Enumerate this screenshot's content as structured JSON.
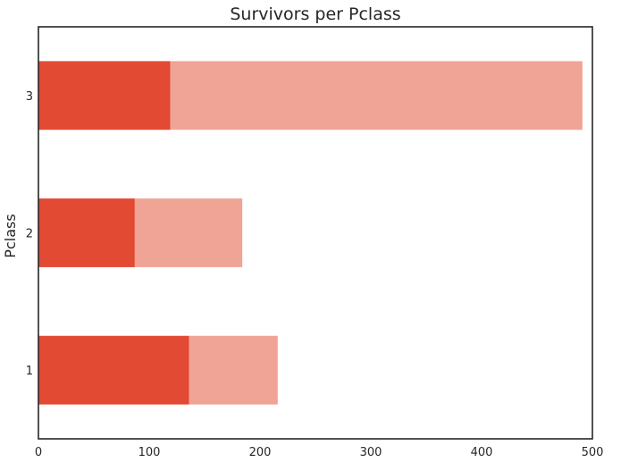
{
  "chart_data": {
    "type": "bar",
    "orientation": "horizontal",
    "stacked": true,
    "title": "Survivors per Pclass",
    "xlabel": "",
    "ylabel": "Pclass",
    "categories": [
      "1",
      "2",
      "3"
    ],
    "series": [
      {
        "values": [
          136,
          87,
          119
        ],
        "color": "#e24a33"
      },
      {
        "values": [
          80,
          97,
          372
        ],
        "color": "#f0a496"
      }
    ],
    "xlim": [
      0,
      500
    ],
    "xticks": [
      0,
      100,
      200,
      300,
      400,
      500
    ],
    "grid": false,
    "legend": "none"
  }
}
